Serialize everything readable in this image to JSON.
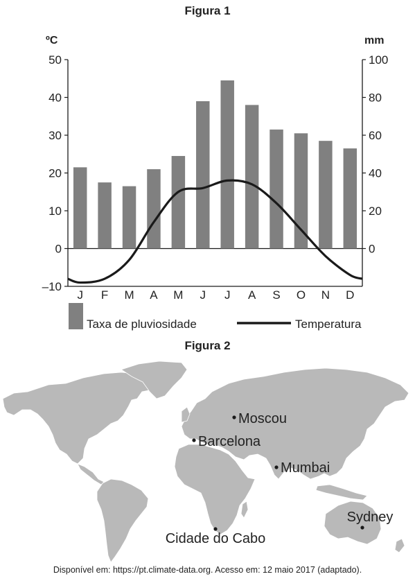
{
  "figure1": {
    "title": "Figura 1"
  },
  "figure2": {
    "title": "Figura 2"
  },
  "source": "Disponível em: https://pt.climate-data.org. Acesso em: 12 maio 2017 (adaptado).",
  "colors": {
    "bar": "#808080",
    "line": "#1a1a1a",
    "land": "#b9b9b9",
    "text": "#222222"
  },
  "chart_data": {
    "type": "bar",
    "title": "Figura 1",
    "categories": [
      "J",
      "F",
      "M",
      "A",
      "M",
      "J",
      "J",
      "A",
      "S",
      "O",
      "N",
      "D"
    ],
    "left_axis": {
      "unit": "ºC",
      "ticks": [
        "50",
        "40",
        "30",
        "20",
        "10",
        "0",
        "–10"
      ],
      "range": [
        -10,
        50
      ]
    },
    "right_axis": {
      "unit": "mm",
      "ticks": [
        "100",
        "80",
        "60",
        "40",
        "20",
        "0"
      ],
      "range": [
        -20,
        100
      ]
    },
    "series": [
      {
        "name": "Taxa de pluviosidade",
        "type": "bar",
        "axis": "right",
        "values": [
          43,
          35,
          33,
          42,
          49,
          78,
          89,
          76,
          63,
          61,
          57,
          53
        ]
      },
      {
        "name": "Temperatura",
        "type": "line",
        "axis": "left",
        "values": [
          -9,
          -8,
          -3,
          7,
          15,
          16,
          18,
          17,
          12,
          5,
          -2,
          -7
        ]
      }
    ],
    "legend": {
      "bar_label": "Taxa de pluviosidade",
      "line_label": "Temperatura",
      "position": "bottom"
    },
    "grid": false
  },
  "map": {
    "cities": [
      {
        "name": "Moscou"
      },
      {
        "name": "Barcelona"
      },
      {
        "name": "Mumbai"
      },
      {
        "name": "Sydney"
      },
      {
        "name": "Cidade do Cabo"
      }
    ]
  }
}
